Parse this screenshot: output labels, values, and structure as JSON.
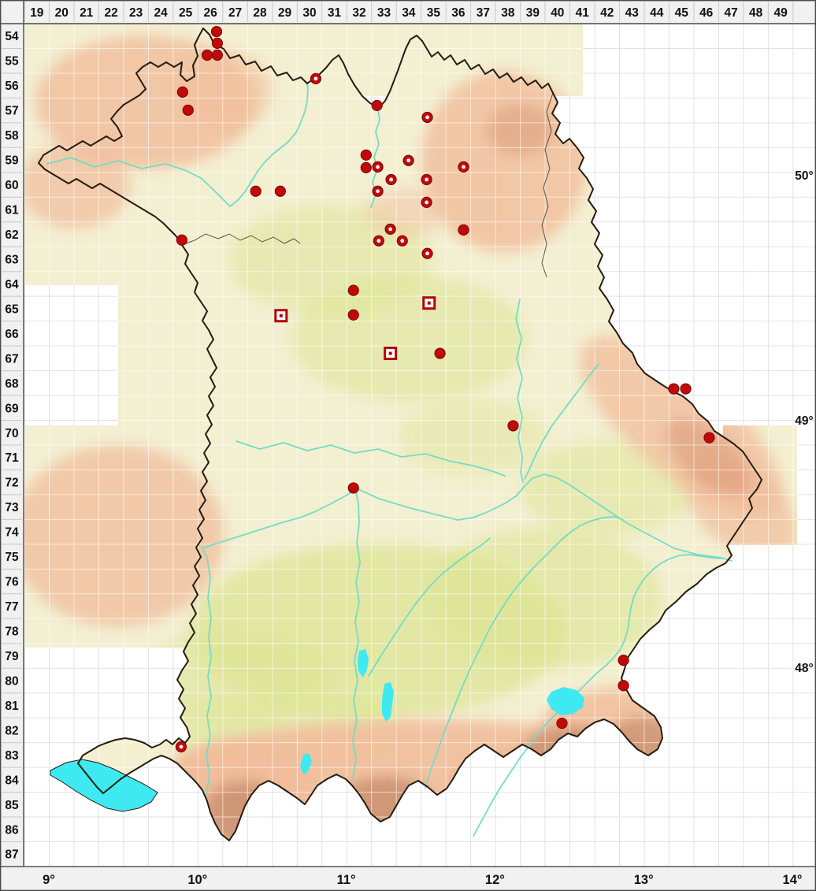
{
  "grid": {
    "column_labels": [
      "19",
      "20",
      "21",
      "22",
      "23",
      "24",
      "25",
      "26",
      "27",
      "28",
      "29",
      "30",
      "31",
      "32",
      "33",
      "34",
      "35",
      "36",
      "37",
      "38",
      "39",
      "40",
      "41",
      "42",
      "43",
      "44",
      "45",
      "46",
      "47",
      "48",
      "49"
    ],
    "row_labels": [
      "54",
      "55",
      "56",
      "57",
      "58",
      "59",
      "60",
      "61",
      "62",
      "63",
      "64",
      "65",
      "66",
      "67",
      "68",
      "69",
      "70",
      "71",
      "72",
      "73",
      "74",
      "75",
      "76",
      "77",
      "78",
      "79",
      "80",
      "81",
      "82",
      "83",
      "84",
      "85",
      "86",
      "87"
    ],
    "longitude_labels": [
      "9°",
      "10°",
      "11°",
      "12°",
      "13°",
      "14°"
    ],
    "latitude_labels": [
      "50°",
      "49°",
      "48°"
    ]
  },
  "markers": {
    "symbol_types": {
      "f": "filled-red-circle",
      "r": "red-circle-white-center",
      "s": "open-red-square"
    },
    "points": [
      {
        "c": 26.75,
        "r": 54.32,
        "t": "f"
      },
      {
        "c": 26.78,
        "r": 54.79,
        "t": "f"
      },
      {
        "c": 26.37,
        "r": 55.27,
        "t": "f"
      },
      {
        "c": 26.78,
        "r": 55.27,
        "t": "f"
      },
      {
        "c": 25.38,
        "r": 56.76,
        "t": "f"
      },
      {
        "c": 25.6,
        "r": 57.49,
        "t": "f"
      },
      {
        "c": 30.75,
        "r": 56.22,
        "t": "r"
      },
      {
        "c": 33.22,
        "r": 57.3,
        "t": "f"
      },
      {
        "c": 35.25,
        "r": 57.78,
        "t": "r"
      },
      {
        "c": 32.78,
        "r": 59.3,
        "t": "f"
      },
      {
        "c": 32.78,
        "r": 59.81,
        "t": "f"
      },
      {
        "c": 33.25,
        "r": 59.78,
        "t": "r"
      },
      {
        "c": 34.49,
        "r": 59.52,
        "t": "r"
      },
      {
        "c": 33.79,
        "r": 60.29,
        "t": "r"
      },
      {
        "c": 33.25,
        "r": 60.76,
        "t": "r"
      },
      {
        "c": 35.22,
        "r": 60.29,
        "t": "r"
      },
      {
        "c": 36.71,
        "r": 59.78,
        "t": "r"
      },
      {
        "c": 35.22,
        "r": 61.21,
        "t": "r"
      },
      {
        "c": 33.76,
        "r": 62.29,
        "t": "r"
      },
      {
        "c": 33.29,
        "r": 62.76,
        "t": "r"
      },
      {
        "c": 34.24,
        "r": 62.76,
        "t": "r"
      },
      {
        "c": 35.25,
        "r": 63.27,
        "t": "r"
      },
      {
        "c": 36.71,
        "r": 62.32,
        "t": "f"
      },
      {
        "c": 28.33,
        "r": 60.76,
        "t": "f"
      },
      {
        "c": 29.32,
        "r": 60.76,
        "t": "f"
      },
      {
        "c": 25.35,
        "r": 62.73,
        "t": "f"
      },
      {
        "c": 32.27,
        "r": 64.76,
        "t": "f"
      },
      {
        "c": 29.35,
        "r": 65.78,
        "t": "s"
      },
      {
        "c": 32.27,
        "r": 65.75,
        "t": "f"
      },
      {
        "c": 35.32,
        "r": 65.27,
        "t": "s"
      },
      {
        "c": 33.76,
        "r": 67.3,
        "t": "s"
      },
      {
        "c": 35.76,
        "r": 67.3,
        "t": "f"
      },
      {
        "c": 38.71,
        "r": 70.22,
        "t": "f"
      },
      {
        "c": 45.19,
        "r": 68.73,
        "t": "f"
      },
      {
        "c": 45.67,
        "r": 68.73,
        "t": "f"
      },
      {
        "c": 46.62,
        "r": 70.7,
        "t": "f"
      },
      {
        "c": 32.27,
        "r": 72.73,
        "t": "f"
      },
      {
        "c": 43.16,
        "r": 79.68,
        "t": "f"
      },
      {
        "c": 43.16,
        "r": 80.7,
        "t": "f"
      },
      {
        "c": 40.68,
        "r": 82.22,
        "t": "f"
      },
      {
        "c": 25.32,
        "r": 83.17,
        "t": "r"
      }
    ]
  },
  "colors": {
    "marker_red": "#c00a0a",
    "marker_red_dark": "#7e0000",
    "square_red": "#b00606",
    "border_black": "#241c12",
    "water_cyan": "#3fe9f2",
    "river_teal": "#74dcc4",
    "terrain_cream": "#f3efd1",
    "terrain_green": "#dde594",
    "terrain_salmon": "#f1bd9b",
    "terrain_brown": "#bd8263",
    "terrain_brown2": "#d89270",
    "band_gray": "#f1f1f1",
    "band_line": "#c8c8c8",
    "frame_gray": "#4a4a4a",
    "grid_gray": "#e2e2e2",
    "grid_white": "rgba(255,255,255,0.6)",
    "label_black": "#111111"
  }
}
